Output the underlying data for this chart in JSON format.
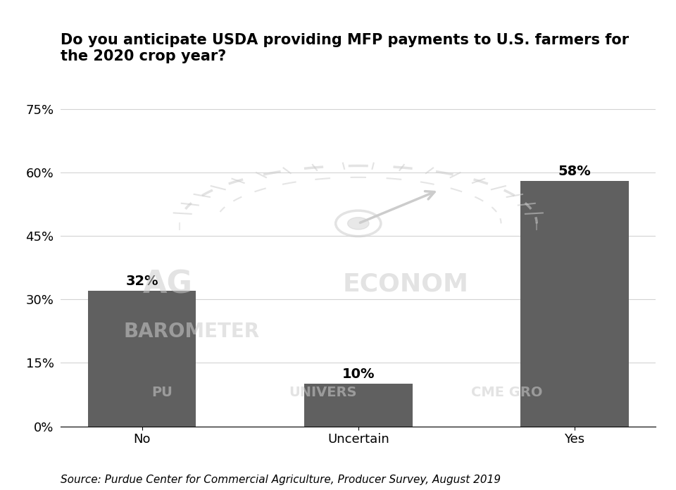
{
  "categories": [
    "No",
    "Uncertain",
    "Yes"
  ],
  "values": [
    32,
    10,
    58
  ],
  "bar_color": "#606060",
  "title_line1": "Do you anticipate USDA providing MFP payments to U.S. farmers for",
  "title_line2": "the 2020 crop year?",
  "yticks": [
    0,
    15,
    30,
    45,
    60,
    75
  ],
  "ytick_labels": [
    "0%",
    "15%",
    "30%",
    "45%",
    "60%",
    "75%"
  ],
  "ylim": [
    0,
    80
  ],
  "source_text": "Source: Purdue Center for Commercial Agriculture, Producer Survey, August 2019",
  "label_fontsize": 13,
  "title_fontsize": 15,
  "tick_fontsize": 13,
  "source_fontsize": 11,
  "bar_width": 0.5,
  "value_label_fontsize": 14,
  "background_color": "#ffffff",
  "watermark_color": "#cccccc",
  "watermark_alpha": 0.55
}
